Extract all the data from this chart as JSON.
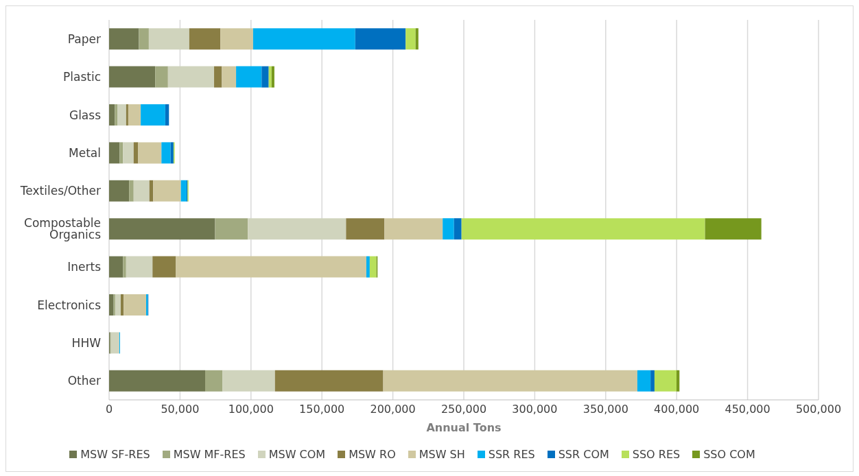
{
  "chart_data": {
    "type": "bar",
    "orientation": "horizontal",
    "stacked": true,
    "xlabel": "Annual Tons",
    "categories": [
      "Paper",
      "Plastic",
      "Glass",
      "Metal",
      "Textiles/Other",
      "Compostable Organics",
      "Inerts",
      "Electronics",
      "HHW",
      "Other"
    ],
    "series": [
      {
        "name": "MSW SF-RES",
        "color": "#6f7750",
        "values": [
          21000,
          32500,
          4000,
          7400,
          14100,
          74700,
          9800,
          3200,
          800,
          67700
        ]
      },
      {
        "name": "MSW MF-RES",
        "color": "#a1aa80",
        "values": [
          7000,
          9000,
          1800,
          2400,
          3200,
          23100,
          2200,
          1100,
          500,
          12300
        ]
      },
      {
        "name": "MSW COM",
        "color": "#d0d4bd",
        "values": [
          28500,
          32500,
          6200,
          7500,
          11100,
          69200,
          18600,
          3900,
          5900,
          36900
        ]
      },
      {
        "name": "MSW RO",
        "color": "#8a7e44",
        "values": [
          22000,
          5500,
          1500,
          3200,
          2700,
          27100,
          16500,
          2100,
          0,
          76300
        ]
      },
      {
        "name": "MSW SH",
        "color": "#d0c8a0",
        "values": [
          23000,
          10000,
          8800,
          16400,
          19500,
          41000,
          134200,
          15800,
          0,
          179100
        ]
      },
      {
        "name": "SSR RES",
        "color": "#00b0f0",
        "values": [
          72000,
          18000,
          17300,
          6400,
          4000,
          8000,
          2400,
          1200,
          500,
          9300
        ]
      },
      {
        "name": "SSR COM",
        "color": "#0070c0",
        "values": [
          35500,
          5000,
          2600,
          2100,
          700,
          5300,
          0,
          400,
          null,
          2800
        ]
      },
      {
        "name": "SSO RES",
        "color": "#b8e05a",
        "values": [
          7000,
          2000,
          0,
          800,
          700,
          171600,
          4700,
          0,
          0,
          15500
        ]
      },
      {
        "name": "SSO COM",
        "color": "#76981e",
        "values": [
          2000,
          2000,
          0,
          0,
          0,
          39700,
          800,
          0,
          0,
          2100
        ]
      }
    ],
    "xlim": [
      0,
      500000
    ],
    "xticks": [
      0,
      {
        "value": 50000,
        "label": "50,000"
      },
      {
        "value": 100000,
        "label": "100,000"
      },
      {
        "value": 150000,
        "label": "150,000"
      },
      {
        "value": 200000,
        "label": "200,000"
      },
      {
        "value": 250000,
        "label": "250,000"
      },
      {
        "value": 300000,
        "label": "300,000"
      },
      {
        "value": 350000,
        "label": "350,000"
      },
      {
        "value": 400000,
        "label": "400,000"
      },
      {
        "value": 450000,
        "label": "450,000"
      },
      {
        "value": 500000,
        "label": "500,000"
      }
    ],
    "grid": "x",
    "legend": "bottom"
  }
}
